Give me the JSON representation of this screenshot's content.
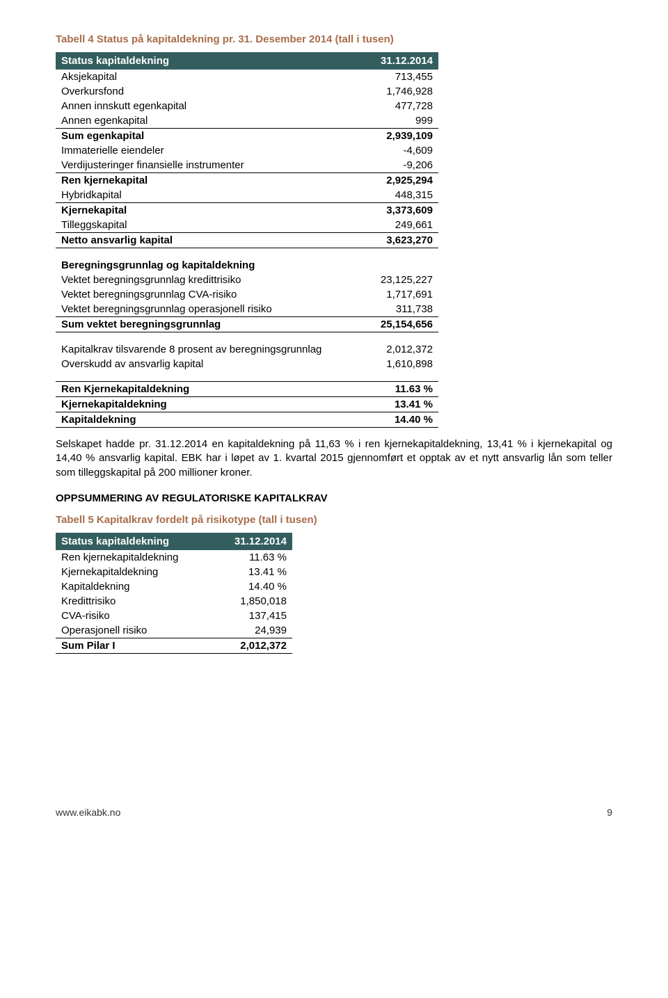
{
  "table4": {
    "caption": "Tabell 4 Status på kapitaldekning pr. 31. Desember 2014 (tall i tusen)",
    "header": {
      "label": "Status kapitaldekning",
      "date": "31.12.2014"
    },
    "rows1": [
      {
        "label": "Aksjekapital",
        "val": "713,455"
      },
      {
        "label": "Overkursfond",
        "val": "1,746,928"
      },
      {
        "label": "Annen innskutt egenkapital",
        "val": "477,728"
      },
      {
        "label": "Annen egenkapital",
        "val": "999"
      }
    ],
    "sum_egen": {
      "label": "Sum egenkapital",
      "val": "2,939,109"
    },
    "rows2": [
      {
        "label": "Immaterielle eiendeler",
        "val": "-4,609"
      },
      {
        "label": "Verdijusteringer finansielle instrumenter",
        "val": "-9,206"
      }
    ],
    "ren_kjerne": {
      "label": "Ren kjernekapital",
      "val": "2,925,294"
    },
    "rows3": [
      {
        "label": "Hybridkapital",
        "val": "448,315"
      }
    ],
    "kjerne": {
      "label": "Kjernekapital",
      "val": "3,373,609"
    },
    "rows4": [
      {
        "label": "Tilleggskapital",
        "val": "249,661"
      }
    ],
    "netto": {
      "label": "Netto ansvarlig kapital",
      "val": "3,623,270"
    },
    "bg_header": "Beregningsgrunnlag og kapitaldekning",
    "bg_rows": [
      {
        "label": "Vektet beregningsgrunnlag kredittrisiko",
        "val": "23,125,227"
      },
      {
        "label": "Vektet beregningsgrunnlag CVA-risiko",
        "val": "1,717,691"
      },
      {
        "label": "Vektet beregningsgrunnlag operasjonell risiko",
        "val": "311,738"
      }
    ],
    "bg_sum": {
      "label": "Sum vektet beregningsgrunnlag",
      "val": "25,154,656"
    },
    "kap_rows": [
      {
        "label": "Kapitalkrav tilsvarende 8 prosent av beregningsgrunnlag",
        "val": "2,012,372"
      },
      {
        "label": "Overskudd av ansvarlig kapital",
        "val": "1,610,898"
      }
    ],
    "pct_rows": [
      {
        "label": "Ren Kjernekapitaldekning",
        "val": "11.63 %"
      },
      {
        "label": "Kjernekapitaldekning",
        "val": "13.41 %"
      },
      {
        "label": "Kapitaldekning",
        "val": "14.40 %"
      }
    ]
  },
  "paragraph": "Selskapet hadde pr. 31.12.2014 en kapitaldekning på 11,63 % i ren kjernekapitaldekning, 13,41 % i kjernekapital og 14,40 % ansvarlig kapital. EBK har i løpet av 1. kvartal 2015 gjennomført et opptak av et nytt ansvarlig lån som teller som tilleggskapital på 200 millioner kroner.",
  "section_heading": "OPPSUMMERING AV REGULATORISKE KAPITALKRAV",
  "table5": {
    "caption": "Tabell 5 Kapitalkrav fordelt på risikotype (tall i tusen)",
    "header": {
      "label": "Status kapitaldekning",
      "date": "31.12.2014"
    },
    "rows": [
      {
        "label": "Ren kjernekapitaldekning",
        "val": "11.63 %"
      },
      {
        "label": "Kjernekapitaldekning",
        "val": "13.41 %"
      },
      {
        "label": "Kapitaldekning",
        "val": "14.40 %"
      },
      {
        "label": "Kredittrisiko",
        "val": "1,850,018"
      },
      {
        "label": "CVA-risiko",
        "val": "137,415"
      },
      {
        "label": "Operasjonell risiko",
        "val": "24,939"
      }
    ],
    "sum": {
      "label": "Sum Pilar I",
      "val": "2,012,372"
    }
  },
  "footer": {
    "link": "www.eikabk.no",
    "page": "9"
  },
  "layout": {
    "t4_label_w": 440,
    "t4_val_w": 110,
    "t5_label_w": 230,
    "t5_val_w": 110
  }
}
